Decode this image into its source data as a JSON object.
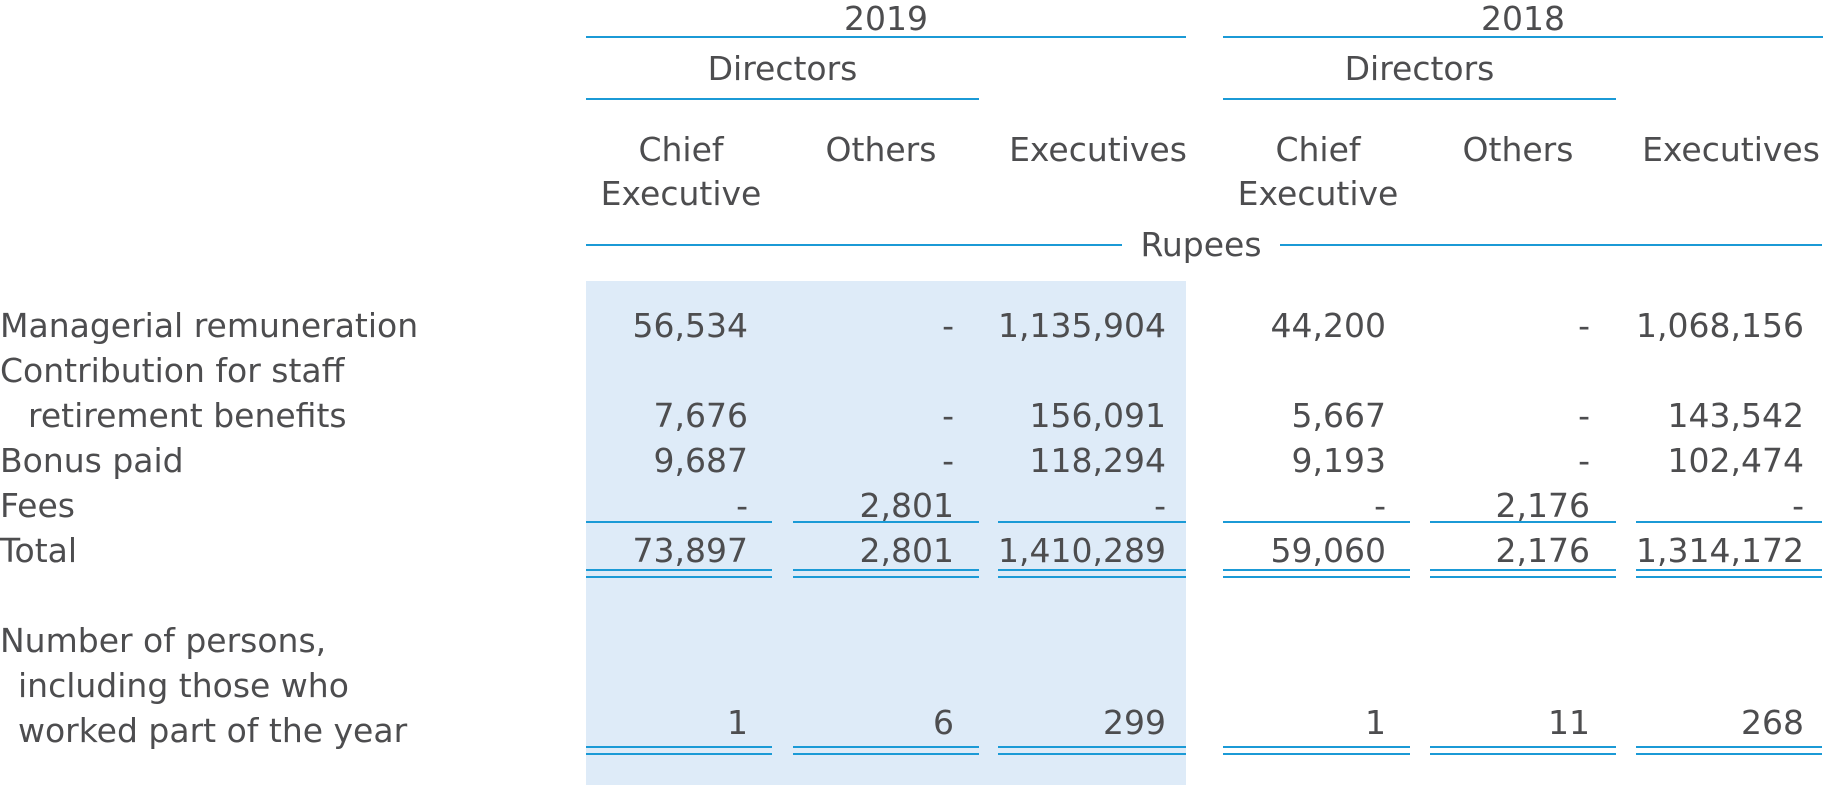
{
  "header": {
    "year_2019": "2019",
    "year_2018": "2018",
    "directors_2019": "Directors",
    "directors_2018": "Directors",
    "col_chief_2019_l1": "Chief",
    "col_chief_2019_l2": "Executive",
    "col_others_2019": "Others",
    "col_exec_2019": "Executives",
    "col_chief_2018_l1": "Chief",
    "col_chief_2018_l2": "Executive",
    "col_others_2018": "Others",
    "col_exec_2018": "Executives",
    "unit": "Rupees"
  },
  "rows": [
    {
      "label_l1": "Managerial remuneration",
      "label_l2": "",
      "values": [
        "56,534",
        "-",
        "1,135,904",
        "44,200",
        "-",
        "1,068,156"
      ]
    },
    {
      "label_l1": "Contribution for staff",
      "label_l2": "retirement benefits",
      "values": [
        "7,676",
        "-",
        "156,091",
        "5,667",
        "-",
        "143,542"
      ]
    },
    {
      "label_l1": "Bonus paid",
      "label_l2": "",
      "values": [
        "9,687",
        "-",
        "118,294",
        "9,193",
        "-",
        "102,474"
      ]
    },
    {
      "label_l1": "Fees",
      "label_l2": "",
      "values": [
        "-",
        "2,801",
        "-",
        "-",
        "2,176",
        "-"
      ]
    }
  ],
  "total": {
    "label": "Total",
    "values": [
      "73,897",
      "2,801",
      "1,410,289",
      "59,060",
      "2,176",
      "1,314,172"
    ]
  },
  "persons": {
    "label_l1": "Number of persons,",
    "label_l2": "including those who",
    "label_l3": "worked part of the year",
    "values": [
      "1",
      "6",
      "299",
      "1",
      "11",
      "268"
    ]
  }
}
